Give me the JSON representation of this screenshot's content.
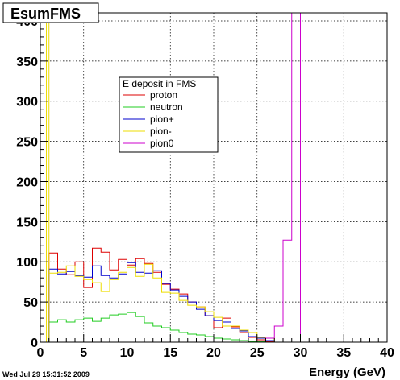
{
  "canvas": {
    "title": "EsumFMS",
    "timestamp": "Wed Jul 29 15:31:52 2009"
  },
  "chart_data": {
    "type": "line",
    "title": "EsumFMS",
    "xlabel": "Energy (GeV)",
    "ylabel": "",
    "xlim": [
      0,
      40
    ],
    "ylim": [
      0,
      410
    ],
    "xticks": [
      0,
      5,
      10,
      15,
      20,
      25,
      30,
      35,
      40
    ],
    "yticks": [
      0,
      50,
      100,
      150,
      200,
      250,
      300,
      350,
      400
    ],
    "grid": true,
    "bin_width": 1,
    "bin_edges_start": 1,
    "legend": {
      "title": "E deposit in FMS",
      "placement": "upper-center"
    },
    "series": [
      {
        "name": "proton",
        "color": "#dd0000",
        "values": [
          111,
          91,
          84,
          100,
          68,
          117,
          112,
          90,
          103,
          96,
          104,
          98,
          87,
          72,
          66,
          60,
          50,
          44,
          33,
          18,
          30,
          19,
          12,
          6,
          3,
          1,
          0,
          0,
          0
        ]
      },
      {
        "name": "neutron",
        "color": "#22cc22",
        "values": [
          25,
          28,
          25,
          28,
          30,
          26,
          30,
          34,
          35,
          37,
          32,
          24,
          20,
          18,
          15,
          12,
          10,
          9,
          7,
          5,
          4,
          3,
          2,
          1,
          1,
          0,
          0,
          0,
          0
        ]
      },
      {
        "name": "pion+",
        "color": "#0000cc",
        "values": [
          91,
          85,
          88,
          83,
          81,
          95,
          83,
          80,
          85,
          99,
          87,
          86,
          89,
          73,
          65,
          57,
          50,
          41,
          33,
          27,
          25,
          17,
          14,
          7,
          5,
          2,
          0,
          0,
          0
        ]
      },
      {
        "name": "pion-",
        "color": "#eedd00",
        "values": [
          86,
          87,
          95,
          82,
          78,
          74,
          63,
          78,
          87,
          93,
          82,
          97,
          80,
          62,
          61,
          52,
          46,
          44,
          38,
          31,
          20,
          20,
          15,
          12,
          6,
          5,
          0,
          0,
          0
        ]
      },
      {
        "name": "pion0",
        "color": "#cc00cc",
        "values": [
          0,
          0,
          0,
          0,
          0,
          0,
          0,
          0,
          0,
          0,
          0,
          0,
          0,
          0,
          0,
          0,
          0,
          0,
          0,
          0,
          0,
          0,
          0,
          0,
          0,
          5,
          20,
          127,
          410
        ]
      }
    ],
    "spike_at_start": {
      "series": "pion-",
      "x": 0.7,
      "value": 410
    }
  }
}
